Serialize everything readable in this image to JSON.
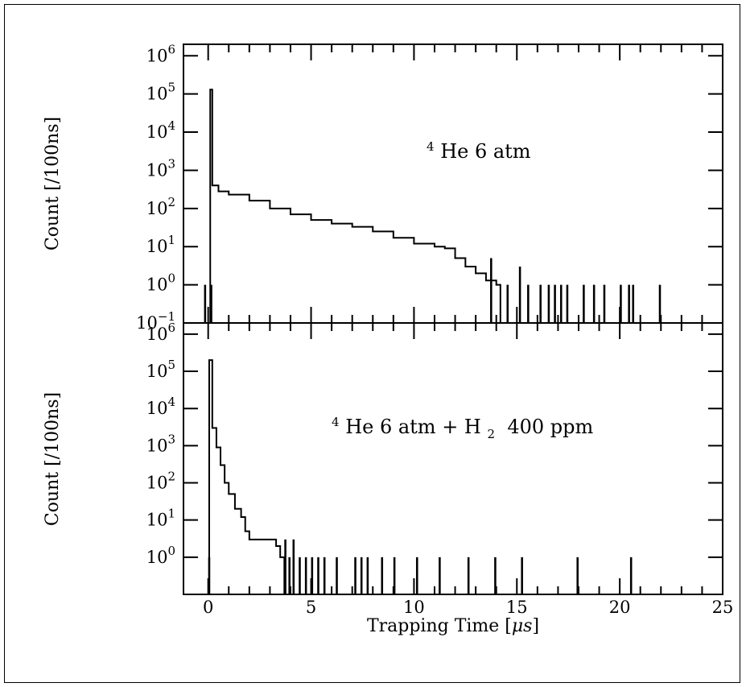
{
  "chart_data": {
    "type": "histogram",
    "x": {
      "label_main": "Trapping Time [",
      "label_unit": "μs",
      "label_end": "]",
      "lim": [
        -1.2,
        25
      ],
      "ticks": [
        "0",
        "5",
        "10",
        "15",
        "20",
        "25"
      ]
    },
    "y": {
      "scale": "log",
      "lim": [
        0.1,
        2000000
      ],
      "ticks": [
        {
          "base": "10",
          "exp": "-1"
        },
        {
          "base": "10",
          "exp": "0"
        },
        {
          "base": "10",
          "exp": "1"
        },
        {
          "base": "10",
          "exp": "2"
        },
        {
          "base": "10",
          "exp": "3"
        },
        {
          "base": "10",
          "exp": "4"
        },
        {
          "base": "10",
          "exp": "5"
        },
        {
          "base": "10",
          "exp": "6"
        }
      ]
    },
    "panels": [
      {
        "ylabel": "Count [/100ns]",
        "annotation": {
          "pre_sup": "4",
          "text": "He 6 atm"
        },
        "series": {
          "curve": [
            [
              0.1,
              130000
            ],
            [
              0.2,
              400
            ],
            [
              0.5,
              280
            ],
            [
              1,
              230
            ],
            [
              2,
              160
            ],
            [
              3,
              100
            ],
            [
              4,
              70
            ],
            [
              5,
              50
            ],
            [
              6,
              40
            ],
            [
              7,
              33
            ],
            [
              8,
              25
            ],
            [
              9,
              17
            ],
            [
              10,
              12
            ],
            [
              11,
              10
            ],
            [
              11.5,
              9
            ],
            [
              12,
              5
            ],
            [
              12.5,
              3
            ],
            [
              13,
              2
            ],
            [
              13.5,
              1.3
            ],
            [
              14,
              1
            ]
          ],
          "spikes": [
            [
              -0.2,
              1
            ],
            [
              0.1,
              1
            ],
            [
              13.7,
              5
            ],
            [
              14.5,
              1
            ],
            [
              15.1,
              3
            ],
            [
              15.5,
              1
            ],
            [
              16.1,
              1
            ],
            [
              16.5,
              1
            ],
            [
              16.8,
              1
            ],
            [
              17.1,
              1
            ],
            [
              17.4,
              1
            ],
            [
              18.2,
              1
            ],
            [
              18.7,
              1
            ],
            [
              19.2,
              1
            ],
            [
              20,
              1
            ],
            [
              20.4,
              1
            ],
            [
              20.6,
              1
            ],
            [
              21.9,
              1
            ]
          ]
        }
      },
      {
        "ylabel": "Count [/100ns]",
        "annotation": {
          "pre_sup": "4",
          "text": "He 6 atm + H",
          "sub": "2",
          "text_after": " 400 ppm"
        },
        "series": {
          "curve": [
            [
              0.05,
              200000
            ],
            [
              0.2,
              3000
            ],
            [
              0.4,
              900
            ],
            [
              0.6,
              300
            ],
            [
              0.8,
              100
            ],
            [
              1,
              50
            ],
            [
              1.3,
              20
            ],
            [
              1.6,
              12
            ],
            [
              1.8,
              5
            ],
            [
              2,
              3
            ],
            [
              2.5,
              3
            ],
            [
              3,
              3
            ],
            [
              3.3,
              2
            ],
            [
              3.5,
              1
            ]
          ],
          "spikes": [
            [
              0,
              1
            ],
            [
              3.7,
              3
            ],
            [
              3.9,
              1
            ],
            [
              4.1,
              3
            ],
            [
              4.4,
              1
            ],
            [
              4.7,
              1
            ],
            [
              5.0,
              1
            ],
            [
              5.3,
              1
            ],
            [
              5.6,
              1
            ],
            [
              6.2,
              1
            ],
            [
              7.1,
              1
            ],
            [
              7.4,
              1
            ],
            [
              7.7,
              1
            ],
            [
              8.4,
              1
            ],
            [
              9.0,
              1
            ],
            [
              10.1,
              1
            ],
            [
              11.2,
              1
            ],
            [
              12.6,
              1
            ],
            [
              13.9,
              1
            ],
            [
              15.2,
              1
            ],
            [
              17.9,
              1
            ],
            [
              20.5,
              1
            ]
          ]
        }
      }
    ]
  }
}
